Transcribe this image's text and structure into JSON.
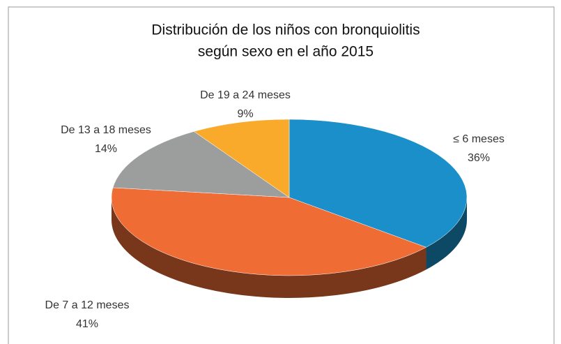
{
  "chart_data": {
    "type": "pie3d",
    "title": [
      "Distribución de los niños con bronquiolitis",
      "según sexo en el año 2015"
    ],
    "categories": [
      "≤ 6 meses",
      "De 7 a 12 meses",
      "De 13 a 18 meses",
      "De 19 a 24 meses"
    ],
    "values": [
      36,
      41,
      14,
      9
    ],
    "value_labels": [
      "36%",
      "41%",
      "14%",
      "9%"
    ],
    "colors": [
      "#1a8fc9",
      "#ef6c35",
      "#9c9e9e",
      "#f9aa2a"
    ]
  }
}
